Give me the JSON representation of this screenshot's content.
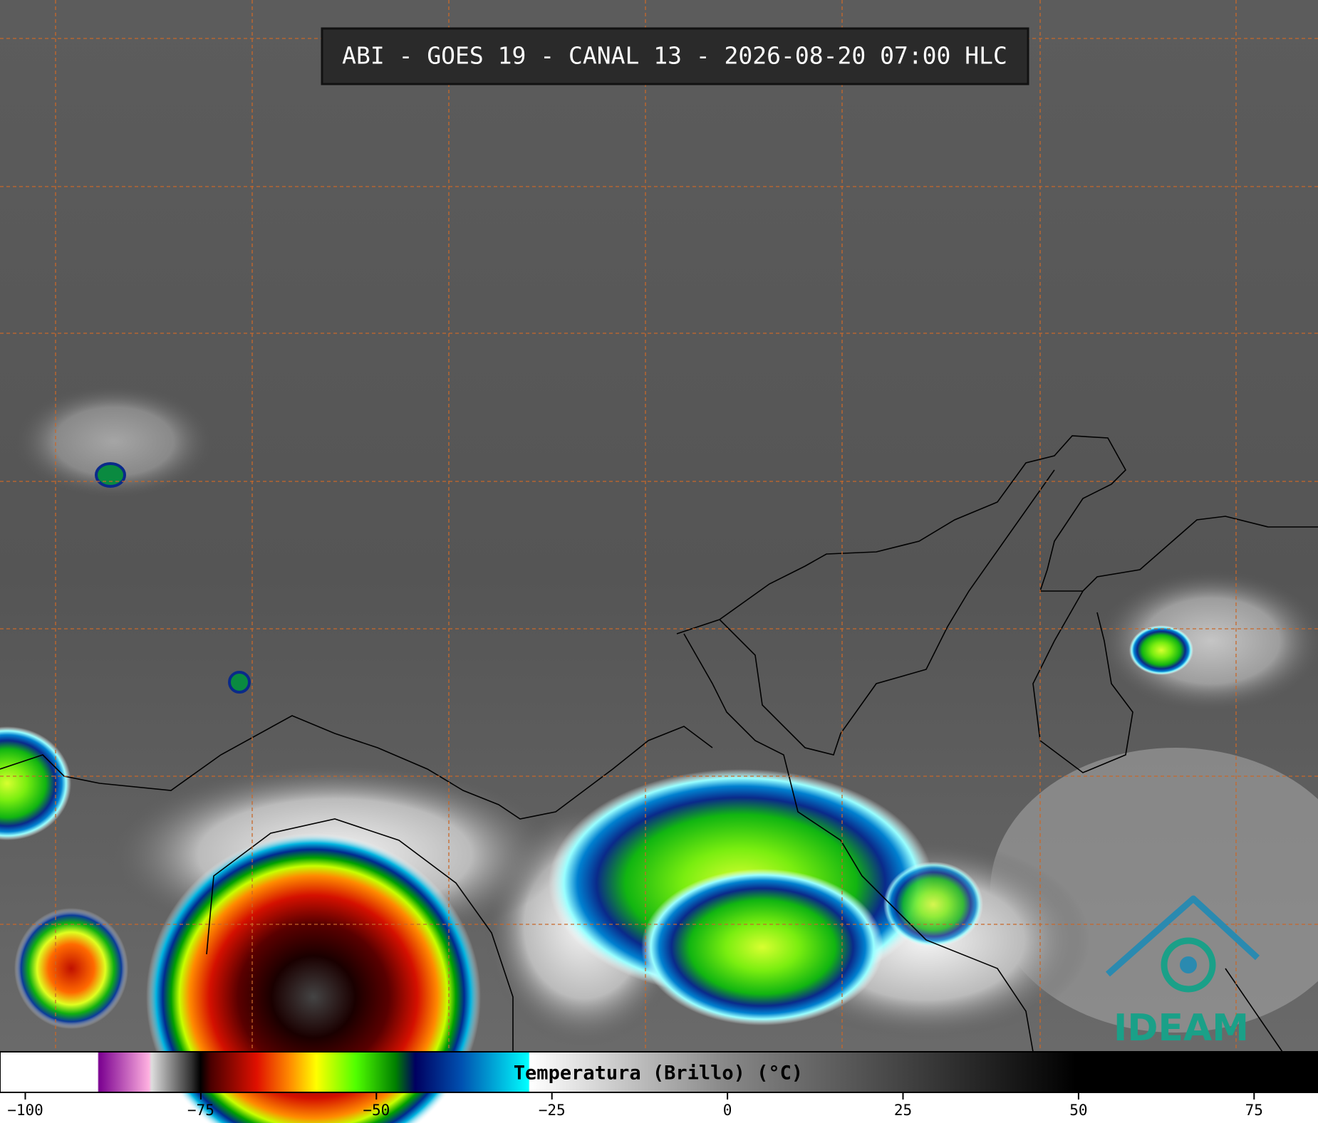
{
  "header": {
    "title": "ABI - GOES 19 - CANAL 13 - 2026-08-20 07:00 HLC"
  },
  "logo": {
    "text": "IDEAM"
  },
  "colorbar": {
    "label": "Temperatura (Brillo) (°C)",
    "xlim": [
      -103.6,
      84.1
    ],
    "xticks": [
      {
        "value": -100,
        "label": "−100"
      },
      {
        "value": -75,
        "label": "−75"
      },
      {
        "value": -50,
        "label": "−50"
      },
      {
        "value": -25,
        "label": "−25"
      },
      0,
      25,
      50,
      75
    ]
  }
}
